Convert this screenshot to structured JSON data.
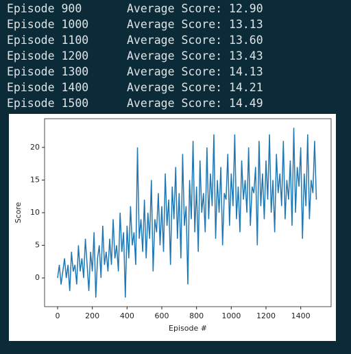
{
  "log_lines": [
    {
      "episode": "Episode 900",
      "score": "Average Score: 12.90"
    },
    {
      "episode": "Episode 1000",
      "score": "Average Score: 13.13"
    },
    {
      "episode": "Episode 1100",
      "score": "Average Score: 13.60"
    },
    {
      "episode": "Episode 1200",
      "score": "Average Score: 13.43"
    },
    {
      "episode": "Episode 1300",
      "score": "Average Score: 14.13"
    },
    {
      "episode": "Episode 1400",
      "score": "Average Score: 14.21"
    },
    {
      "episode": "Episode 1500",
      "score": "Average Score: 14.49"
    }
  ],
  "chart_data": {
    "type": "line",
    "xlabel": "Episode #",
    "ylabel": "Score",
    "color": "#1f77b4",
    "x": [
      0,
      10,
      20,
      30,
      40,
      50,
      60,
      70,
      80,
      90,
      100,
      110,
      120,
      130,
      140,
      150,
      160,
      170,
      180,
      190,
      200,
      210,
      220,
      230,
      240,
      250,
      260,
      270,
      280,
      290,
      300,
      310,
      320,
      330,
      340,
      350,
      360,
      370,
      380,
      390,
      400,
      410,
      420,
      430,
      440,
      450,
      460,
      470,
      480,
      490,
      500,
      510,
      520,
      530,
      540,
      550,
      560,
      570,
      580,
      590,
      600,
      610,
      620,
      630,
      640,
      650,
      660,
      670,
      680,
      690,
      700,
      710,
      720,
      730,
      740,
      750,
      760,
      770,
      780,
      790,
      800,
      810,
      820,
      830,
      840,
      850,
      860,
      870,
      880,
      890,
      900,
      910,
      920,
      930,
      940,
      950,
      960,
      970,
      980,
      990,
      1000,
      1010,
      1020,
      1030,
      1040,
      1050,
      1060,
      1070,
      1080,
      1090,
      1100,
      1110,
      1120,
      1130,
      1140,
      1150,
      1160,
      1170,
      1180,
      1190,
      1200,
      1210,
      1220,
      1230,
      1240,
      1250,
      1260,
      1270,
      1280,
      1290,
      1300,
      1310,
      1320,
      1330,
      1340,
      1350,
      1360,
      1370,
      1380,
      1390,
      1400,
      1410,
      1420,
      1430,
      1440,
      1450,
      1460,
      1470,
      1480,
      1490
    ],
    "values": [
      0,
      2,
      -1,
      1,
      3,
      0,
      2,
      -2,
      4,
      1,
      2,
      -1,
      5,
      1,
      3,
      0,
      6,
      2,
      -2,
      4,
      1,
      7,
      -3,
      3,
      5,
      0,
      8,
      2,
      4,
      1,
      6,
      2,
      9,
      3,
      5,
      1,
      10,
      4,
      7,
      -3,
      8,
      3,
      11,
      5,
      7,
      2,
      20,
      6,
      9,
      4,
      12,
      3,
      10,
      6,
      15,
      1,
      9,
      7,
      13,
      5,
      11,
      4,
      16,
      8,
      12,
      2,
      14,
      9,
      17,
      6,
      13,
      3,
      19,
      8,
      11,
      -1,
      15,
      9,
      21,
      7,
      14,
      4,
      18,
      10,
      13,
      7,
      20,
      9,
      16,
      11,
      22,
      6,
      15,
      10,
      17,
      5,
      13,
      12,
      19,
      8,
      16,
      11,
      22,
      9,
      14,
      7,
      18,
      12,
      15,
      10,
      20,
      8,
      14,
      13,
      17,
      5,
      21,
      11,
      16,
      9,
      18,
      12,
      22,
      10,
      15,
      7,
      19,
      13,
      16,
      11,
      21,
      9,
      15,
      12,
      18,
      8,
      23,
      10,
      17,
      14,
      20,
      6,
      16,
      11,
      22,
      9,
      15,
      13,
      21,
      12
    ],
    "xlim": [
      -75,
      1575
    ],
    "xticks": [
      0,
      200,
      400,
      600,
      800,
      1000,
      1200,
      1400
    ],
    "ylim": [
      -4.4,
      24.4
    ],
    "yticks": [
      0,
      5,
      10,
      15,
      20
    ]
  }
}
